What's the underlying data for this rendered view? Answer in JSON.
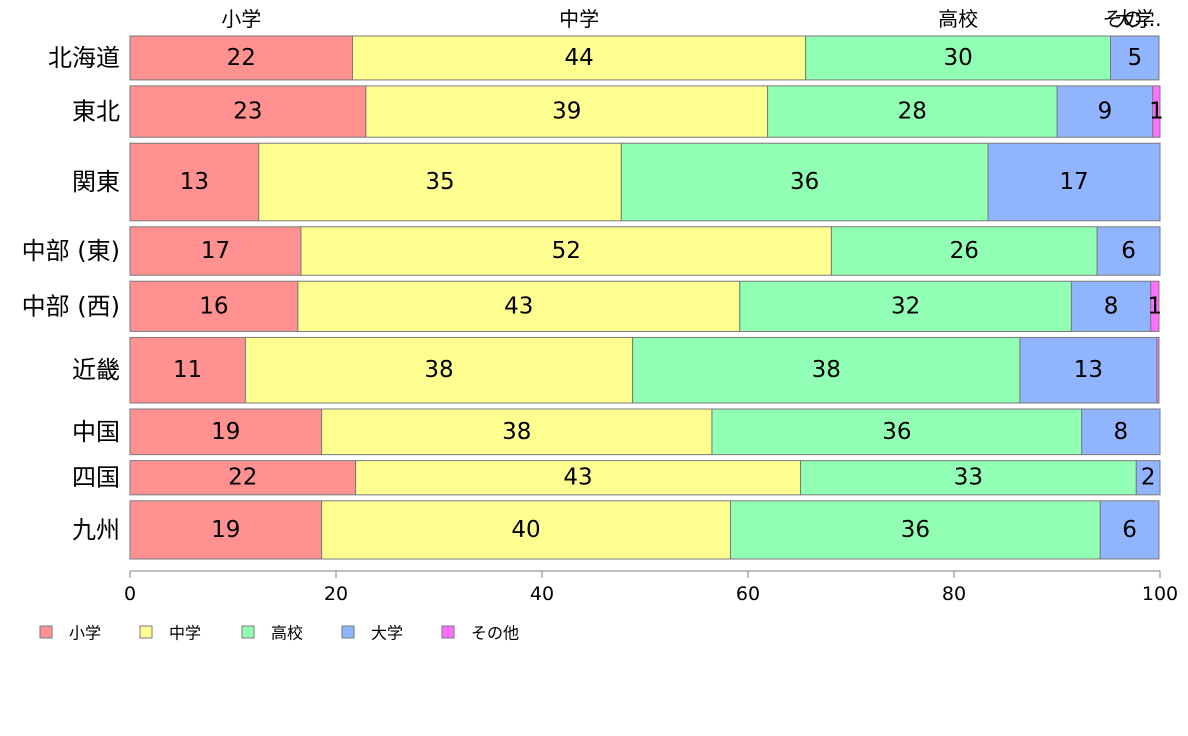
{
  "chart_data": {
    "type": "bar",
    "orientation": "horizontal",
    "stacked": true,
    "proportional": true,
    "categories": [
      "北海道",
      "東北",
      "関東",
      "中部 (東)",
      "中部 (西)",
      "近畿",
      "中国",
      "四国",
      "九州"
    ],
    "category_weights": [
      0.77,
      0.9,
      1.36,
      0.85,
      0.88,
      1.15,
      0.8,
      0.6,
      1.02
    ],
    "series": [
      {
        "name": "小学",
        "color": "#FF9191",
        "values": [
          21.6,
          22.9,
          12.5,
          16.6,
          16.3,
          11.2,
          18.6,
          21.9,
          18.6
        ],
        "labels": [
          "22",
          "23",
          "13",
          "17",
          "16",
          "11",
          "19",
          "22",
          "19"
        ]
      },
      {
        "name": "中学",
        "color": "#FFFF91",
        "values": [
          44.0,
          39.0,
          35.2,
          51.5,
          42.9,
          37.6,
          37.9,
          43.2,
          39.7
        ],
        "labels": [
          "44",
          "39",
          "35",
          "52",
          "43",
          "38",
          "38",
          "43",
          "40"
        ]
      },
      {
        "name": "高校",
        "color": "#91FFB4",
        "values": [
          29.6,
          28.1,
          35.6,
          25.8,
          32.2,
          37.6,
          35.9,
          32.6,
          35.9
        ],
        "labels": [
          "30",
          "28",
          "36",
          "26",
          "32",
          "38",
          "36",
          "33",
          "36"
        ]
      },
      {
        "name": "大学",
        "color": "#91B4FF",
        "values": [
          4.7,
          9.3,
          16.7,
          6.1,
          7.7,
          13.3,
          7.6,
          2.3,
          5.7
        ],
        "labels": [
          "5",
          "9",
          "17",
          "6",
          "8",
          "13",
          "8",
          "2",
          "6"
        ]
      },
      {
        "name": "その他",
        "color": "#FF6EFF",
        "values": [
          0.0,
          0.7,
          0.0,
          0.0,
          0.8,
          0.2,
          0.0,
          0.0,
          0.0
        ],
        "labels": [
          "",
          "1",
          "",
          "",
          "1",
          "",
          "",
          "",
          ""
        ]
      }
    ],
    "top_labels": [
      "小学",
      "中学",
      "高校",
      "大学",
      "その..."
    ],
    "xlim": [
      0,
      100
    ],
    "xticks": [
      "0",
      "20",
      "40",
      "60",
      "80",
      "100"
    ],
    "xlabel": "",
    "ylabel": "",
    "title": "",
    "legend": {
      "position": "bottom-left",
      "items": [
        "小学",
        "中学",
        "高校",
        "大学",
        "その他"
      ]
    },
    "grid": false
  }
}
